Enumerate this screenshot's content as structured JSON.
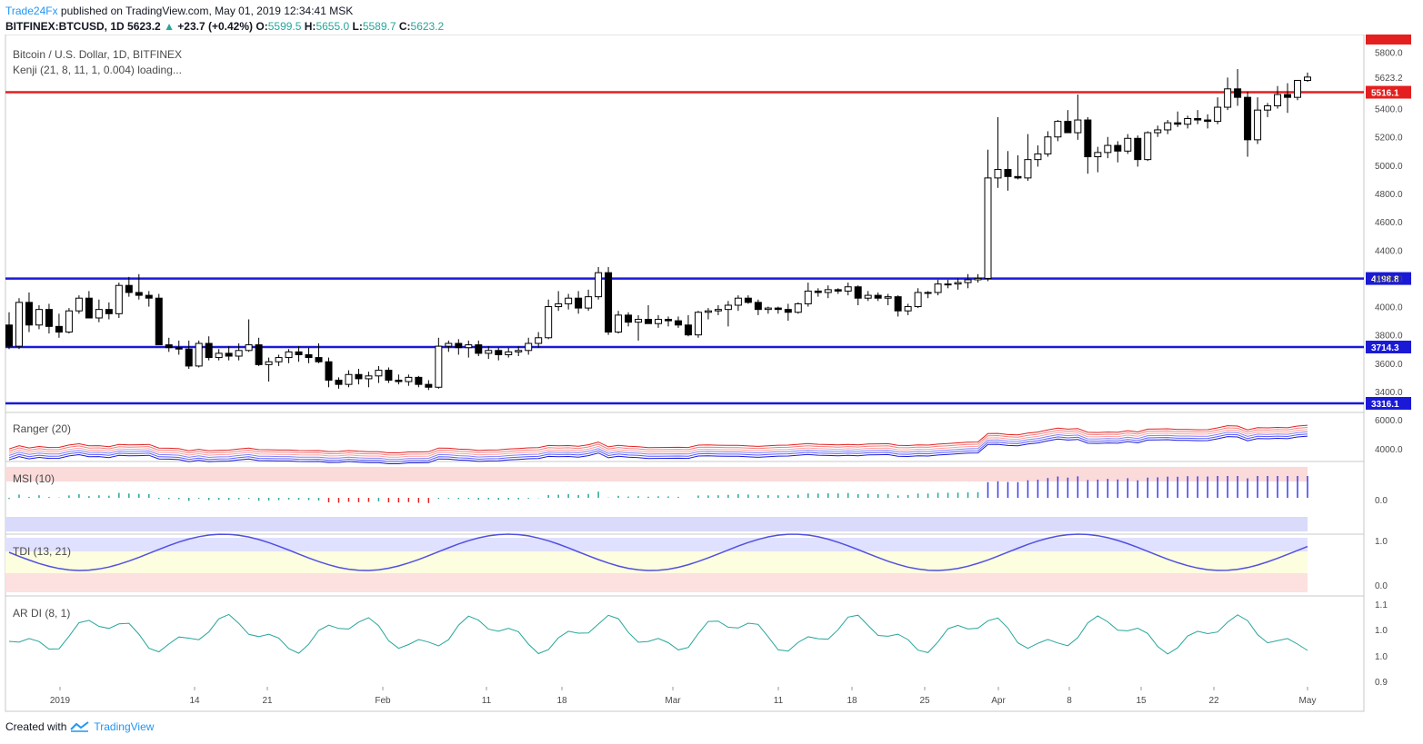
{
  "header": {
    "brand": "Trade24Fx",
    "published": " published on TradingView.com, May 01, 2019 12:34:41 MSK",
    "symbol": "BITFINEX:BTCUSD, 1D",
    "last": "5623.2",
    "change_arrow": "▲",
    "change": "+23.7 (+0.42%)",
    "o_label": "O:",
    "o": "5599.5",
    "h_label": "H:",
    "h": "5655.0",
    "l_label": "L:",
    "l": "5589.7",
    "c_label": "C:",
    "c": "5623.2"
  },
  "legend": {
    "title": "Bitcoin / U.S. Dollar, 1D, BITFINEX",
    "indicator": "Kenji (21, 8, 11, 1, 0.004) loading..."
  },
  "panels": {
    "ranger": "Ranger (20)",
    "msi": "MSI (10)",
    "tdi": "TDI (13, 21)",
    "ardi": "AR DI (8, 1)"
  },
  "footer": {
    "created": "Created with",
    "brand": "TradingView"
  },
  "colors": {
    "up": "#26a69a",
    "bull_fill": "#ffffff",
    "bear_fill": "#000000",
    "red_line": "#e41f1f",
    "blue_line": "#1a1ad6",
    "tag_red": "#e41f1f",
    "tag_blue": "#1a1ad6"
  },
  "chart_data": {
    "type": "candlestick",
    "title": "Bitcoin / U.S. Dollar, 1D, BITFINEX",
    "y_axis_labels": [
      "6000.0",
      "5800.0",
      "5623.2",
      "5400.0",
      "5200.0",
      "5000.0",
      "4800.0",
      "4600.0",
      "4400.0",
      "4200.0",
      "4000.0",
      "3800.0",
      "3600.0",
      "3400.0"
    ],
    "ylim": [
      3300,
      5880
    ],
    "x_axis_labels": [
      "2019",
      "14",
      "21",
      "Feb",
      "11",
      "18",
      "Mar",
      "11",
      "18",
      "25",
      "Apr",
      "8",
      "15",
      "22",
      "May"
    ],
    "horizontal_levels": [
      {
        "value": 5516.1,
        "label": "5516.1",
        "color": "red"
      },
      {
        "value": 4198.8,
        "label": "4198.8",
        "color": "blue"
      },
      {
        "value": 3714.3,
        "label": "3714.3",
        "color": "blue"
      },
      {
        "value": 3316.1,
        "label": "3316.1",
        "color": "blue"
      }
    ],
    "last_price_label": "5623.2",
    "candles": [
      [
        3870,
        3960,
        3700,
        3720
      ],
      [
        3720,
        4060,
        3700,
        4030
      ],
      [
        4030,
        4100,
        3820,
        3870
      ],
      [
        3870,
        4010,
        3840,
        3980
      ],
      [
        3980,
        4020,
        3810,
        3860
      ],
      [
        3860,
        3950,
        3780,
        3820
      ],
      [
        3820,
        3990,
        3810,
        3970
      ],
      [
        3970,
        4080,
        3950,
        4060
      ],
      [
        4060,
        4110,
        3920,
        3920
      ],
      [
        3920,
        4050,
        3890,
        3980
      ],
      [
        3980,
        4030,
        3910,
        3950
      ],
      [
        3950,
        4170,
        3920,
        4150
      ],
      [
        4150,
        4210,
        4070,
        4100
      ],
      [
        4100,
        4230,
        4050,
        4080
      ],
      [
        4080,
        4110,
        4000,
        4060
      ],
      [
        4060,
        4090,
        3730,
        3730
      ],
      [
        3730,
        3780,
        3680,
        3710
      ],
      [
        3710,
        3760,
        3660,
        3700
      ],
      [
        3700,
        3760,
        3560,
        3580
      ],
      [
        3580,
        3760,
        3570,
        3740
      ],
      [
        3740,
        3790,
        3620,
        3640
      ],
      [
        3640,
        3700,
        3620,
        3670
      ],
      [
        3670,
        3720,
        3620,
        3650
      ],
      [
        3650,
        3740,
        3620,
        3690
      ],
      [
        3690,
        3910,
        3680,
        3730
      ],
      [
        3730,
        3780,
        3580,
        3590
      ],
      [
        3590,
        3640,
        3470,
        3610
      ],
      [
        3610,
        3660,
        3580,
        3640
      ],
      [
        3640,
        3700,
        3600,
        3680
      ],
      [
        3680,
        3720,
        3610,
        3660
      ],
      [
        3660,
        3710,
        3600,
        3640
      ],
      [
        3640,
        3740,
        3600,
        3610
      ],
      [
        3610,
        3640,
        3430,
        3480
      ],
      [
        3480,
        3500,
        3420,
        3450
      ],
      [
        3450,
        3550,
        3430,
        3520
      ],
      [
        3520,
        3560,
        3450,
        3490
      ],
      [
        3490,
        3540,
        3430,
        3510
      ],
      [
        3510,
        3580,
        3460,
        3550
      ],
      [
        3550,
        3570,
        3460,
        3480
      ],
      [
        3480,
        3520,
        3450,
        3470
      ],
      [
        3470,
        3520,
        3440,
        3500
      ],
      [
        3500,
        3510,
        3430,
        3450
      ],
      [
        3450,
        3480,
        3410,
        3430
      ],
      [
        3430,
        3780,
        3420,
        3720
      ],
      [
        3720,
        3760,
        3680,
        3740
      ],
      [
        3740,
        3770,
        3660,
        3710
      ],
      [
        3710,
        3760,
        3640,
        3730
      ],
      [
        3730,
        3760,
        3650,
        3670
      ],
      [
        3670,
        3720,
        3630,
        3690
      ],
      [
        3690,
        3710,
        3620,
        3660
      ],
      [
        3660,
        3710,
        3640,
        3680
      ],
      [
        3680,
        3720,
        3650,
        3690
      ],
      [
        3690,
        3780,
        3660,
        3740
      ],
      [
        3740,
        3820,
        3710,
        3780
      ],
      [
        3780,
        4050,
        3770,
        4000
      ],
      [
        4000,
        4110,
        3970,
        4020
      ],
      [
        4020,
        4090,
        3980,
        4060
      ],
      [
        4060,
        4110,
        3950,
        3990
      ],
      [
        3990,
        4120,
        3970,
        4070
      ],
      [
        4070,
        4280,
        4050,
        4240
      ],
      [
        4240,
        4280,
        3800,
        3820
      ],
      [
        3820,
        3970,
        3810,
        3940
      ],
      [
        3940,
        3960,
        3860,
        3890
      ],
      [
        3890,
        3940,
        3760,
        3910
      ],
      [
        3910,
        4010,
        3880,
        3880
      ],
      [
        3880,
        3940,
        3850,
        3910
      ],
      [
        3910,
        3930,
        3860,
        3900
      ],
      [
        3900,
        3930,
        3850,
        3870
      ],
      [
        3870,
        3940,
        3790,
        3800
      ],
      [
        3800,
        3970,
        3780,
        3960
      ],
      [
        3960,
        3990,
        3910,
        3970
      ],
      [
        3970,
        4010,
        3940,
        3980
      ],
      [
        3980,
        4040,
        3860,
        4010
      ],
      [
        4010,
        4080,
        3970,
        4060
      ],
      [
        4060,
        4080,
        4020,
        4030
      ],
      [
        4030,
        4050,
        3940,
        3980
      ],
      [
        3980,
        4000,
        3950,
        3990
      ],
      [
        3990,
        4000,
        3950,
        3980
      ],
      [
        3980,
        4020,
        3900,
        3960
      ],
      [
        3960,
        4030,
        3950,
        4020
      ],
      [
        4020,
        4170,
        4000,
        4110
      ],
      [
        4110,
        4130,
        4070,
        4100
      ],
      [
        4100,
        4150,
        4060,
        4120
      ],
      [
        4120,
        4130,
        4090,
        4110
      ],
      [
        4110,
        4170,
        4080,
        4140
      ],
      [
        4140,
        4150,
        4010,
        4060
      ],
      [
        4060,
        4110,
        4040,
        4080
      ],
      [
        4080,
        4100,
        4040,
        4060
      ],
      [
        4060,
        4090,
        4010,
        4070
      ],
      [
        4070,
        4080,
        3930,
        3970
      ],
      [
        3970,
        4020,
        3940,
        4000
      ],
      [
        4000,
        4130,
        3990,
        4100
      ],
      [
        4100,
        4110,
        4060,
        4100
      ],
      [
        4100,
        4190,
        4080,
        4160
      ],
      [
        4160,
        4190,
        4130,
        4160
      ],
      [
        4160,
        4200,
        4120,
        4170
      ],
      [
        4170,
        4230,
        4130,
        4190
      ],
      [
        4190,
        4230,
        4170,
        4200
      ],
      [
        4200,
        5110,
        4180,
        4910
      ],
      [
        4910,
        5340,
        4840,
        4970
      ],
      [
        4970,
        5100,
        4820,
        4920
      ],
      [
        4920,
        5070,
        4900,
        4910
      ],
      [
        4910,
        5220,
        4890,
        5040
      ],
      [
        5040,
        5140,
        4990,
        5080
      ],
      [
        5080,
        5240,
        5060,
        5200
      ],
      [
        5200,
        5320,
        5170,
        5310
      ],
      [
        5310,
        5390,
        5250,
        5230
      ],
      [
        5230,
        5500,
        5180,
        5320
      ],
      [
        5320,
        5340,
        4940,
        5060
      ],
      [
        5060,
        5130,
        4950,
        5090
      ],
      [
        5090,
        5200,
        5050,
        5140
      ],
      [
        5140,
        5170,
        5020,
        5100
      ],
      [
        5100,
        5220,
        5080,
        5190
      ],
      [
        5190,
        5210,
        4990,
        5040
      ],
      [
        5040,
        5240,
        5030,
        5230
      ],
      [
        5230,
        5280,
        5200,
        5250
      ],
      [
        5250,
        5320,
        5220,
        5300
      ],
      [
        5300,
        5380,
        5270,
        5290
      ],
      [
        5290,
        5350,
        5260,
        5330
      ],
      [
        5330,
        5390,
        5290,
        5320
      ],
      [
        5320,
        5360,
        5260,
        5310
      ],
      [
        5310,
        5480,
        5290,
        5410
      ],
      [
        5410,
        5620,
        5390,
        5540
      ],
      [
        5540,
        5680,
        5420,
        5480
      ],
      [
        5480,
        5520,
        5060,
        5180
      ],
      [
        5180,
        5480,
        5150,
        5390
      ],
      [
        5390,
        5440,
        5340,
        5420
      ],
      [
        5420,
        5560,
        5400,
        5500
      ],
      [
        5500,
        5580,
        5370,
        5480
      ],
      [
        5480,
        5590,
        5460,
        5600
      ],
      [
        5599.5,
        5655,
        5589.7,
        5623.2
      ]
    ]
  }
}
